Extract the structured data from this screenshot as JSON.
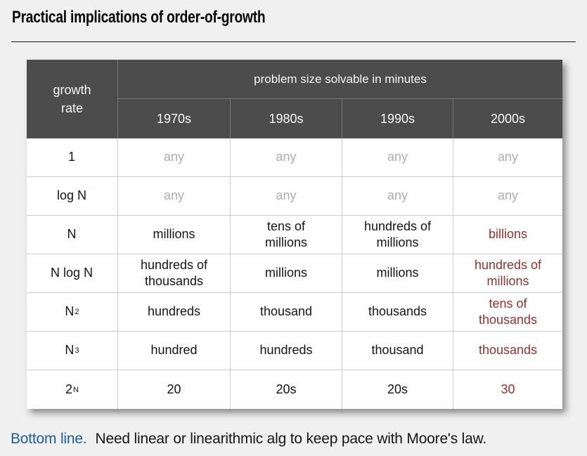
{
  "title": "Practical implications of order-of-growth",
  "table": {
    "corner_header": "growth\nrate",
    "span_header": "problem size solvable in minutes",
    "decades": [
      "1970s",
      "1980s",
      "1990s",
      "2000s"
    ],
    "rows": [
      {
        "label": {
          "base": "1",
          "sup": ""
        },
        "cells": [
          "any",
          "any",
          "any",
          "any"
        ]
      },
      {
        "label": {
          "base": "log N",
          "sup": ""
        },
        "cells": [
          "any",
          "any",
          "any",
          "any"
        ]
      },
      {
        "label": {
          "base": "N",
          "sup": ""
        },
        "cells": [
          "millions",
          "tens of\nmillions",
          "hundreds of\nmillions",
          "billions"
        ]
      },
      {
        "label": {
          "base": "N log N",
          "sup": ""
        },
        "cells": [
          "hundreds of\nthousands",
          "millions",
          "millions",
          "hundreds of\nmillions"
        ]
      },
      {
        "label": {
          "base": "N",
          "sup": "2"
        },
        "cells": [
          "hundreds",
          "thousand",
          "thousands",
          "tens of\nthousands"
        ]
      },
      {
        "label": {
          "base": "N",
          "sup": "3"
        },
        "cells": [
          "hundred",
          "hundreds",
          "thousand",
          "thousands"
        ]
      },
      {
        "label": {
          "base": "2",
          "sup": "N"
        },
        "cells": [
          "20",
          "20s",
          "20s",
          "30"
        ]
      }
    ]
  },
  "bottom_line": {
    "lead": "Bottom line.",
    "text": "Need linear or linearithmic alg to keep pace with Moore's law."
  },
  "colors": {
    "background": "#f0f0f0",
    "header_bg": "#4c4c4c",
    "header_text": "#f5f5f5",
    "cell_text": "#141414",
    "muted_text": "#adadad",
    "accent_red": "#8e3230",
    "accent_blue": "#1f5c99",
    "border": "#cccccc"
  }
}
